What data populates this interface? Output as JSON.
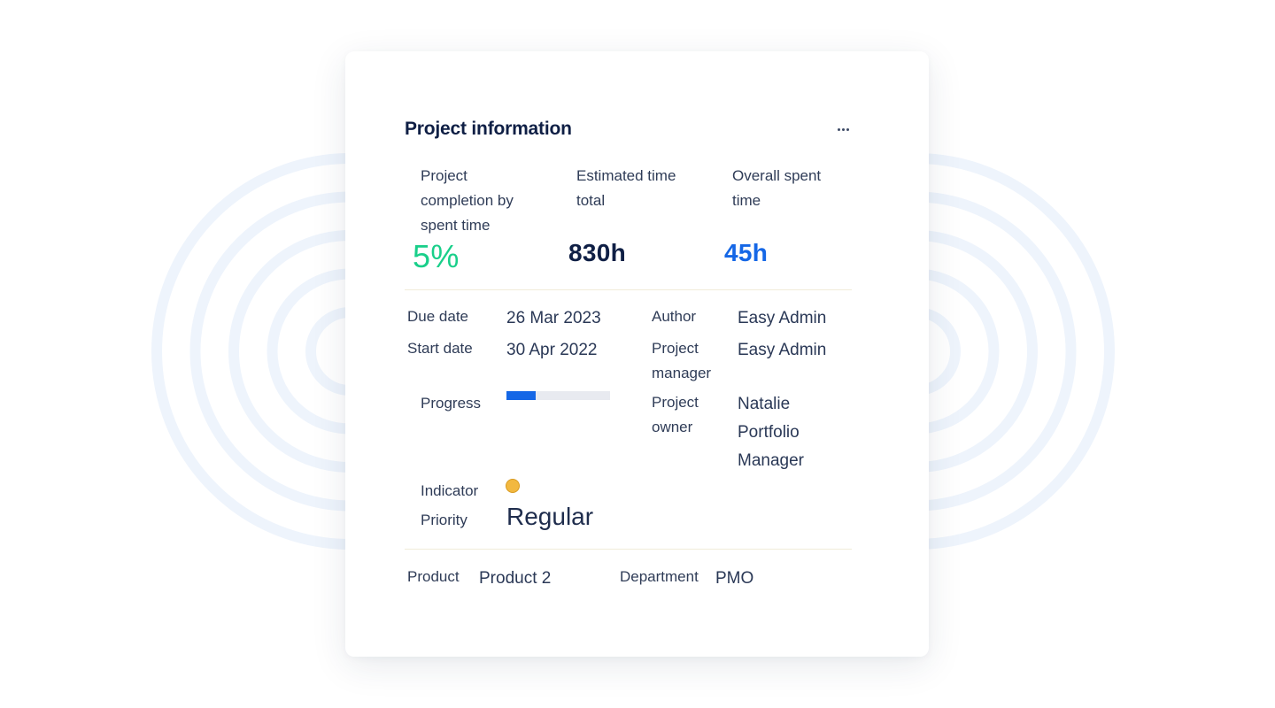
{
  "widget": {
    "title": "Project information",
    "menu_icon": "ellipsis-icon"
  },
  "kpis": {
    "completion": {
      "label": "Project completion by spent time",
      "value": "5%",
      "color": "#19cf8a"
    },
    "estimated": {
      "label": "Estimated time total",
      "value": "830h",
      "color": "#0f1f45"
    },
    "spent": {
      "label": "Overall spent time",
      "value": "45h",
      "color": "#1567e6"
    }
  },
  "details": {
    "due_date": {
      "label": "Due date",
      "value": "26 Mar 2023"
    },
    "start_date": {
      "label": "Start date",
      "value": "30 Apr 2022"
    },
    "progress": {
      "label": "Progress",
      "percent": 28,
      "color": "#1567e6"
    },
    "indicator": {
      "label": "Indicator",
      "status_color": "#f2b840"
    },
    "priority": {
      "label": "Priority",
      "value": "Regular"
    },
    "author": {
      "label": "Author",
      "value": "Easy Admin"
    },
    "project_manager": {
      "label": "Project manager",
      "value": "Easy Admin"
    },
    "project_owner": {
      "label": "Project owner",
      "value": "Natalie Portfolio Manager"
    }
  },
  "custom_fields": {
    "product": {
      "label": "Product",
      "value": "Product 2"
    },
    "department": {
      "label": "Department",
      "value": "PMO"
    }
  },
  "colors": {
    "background_rings": "#eef4fc",
    "divider": "#f1ecd9"
  }
}
